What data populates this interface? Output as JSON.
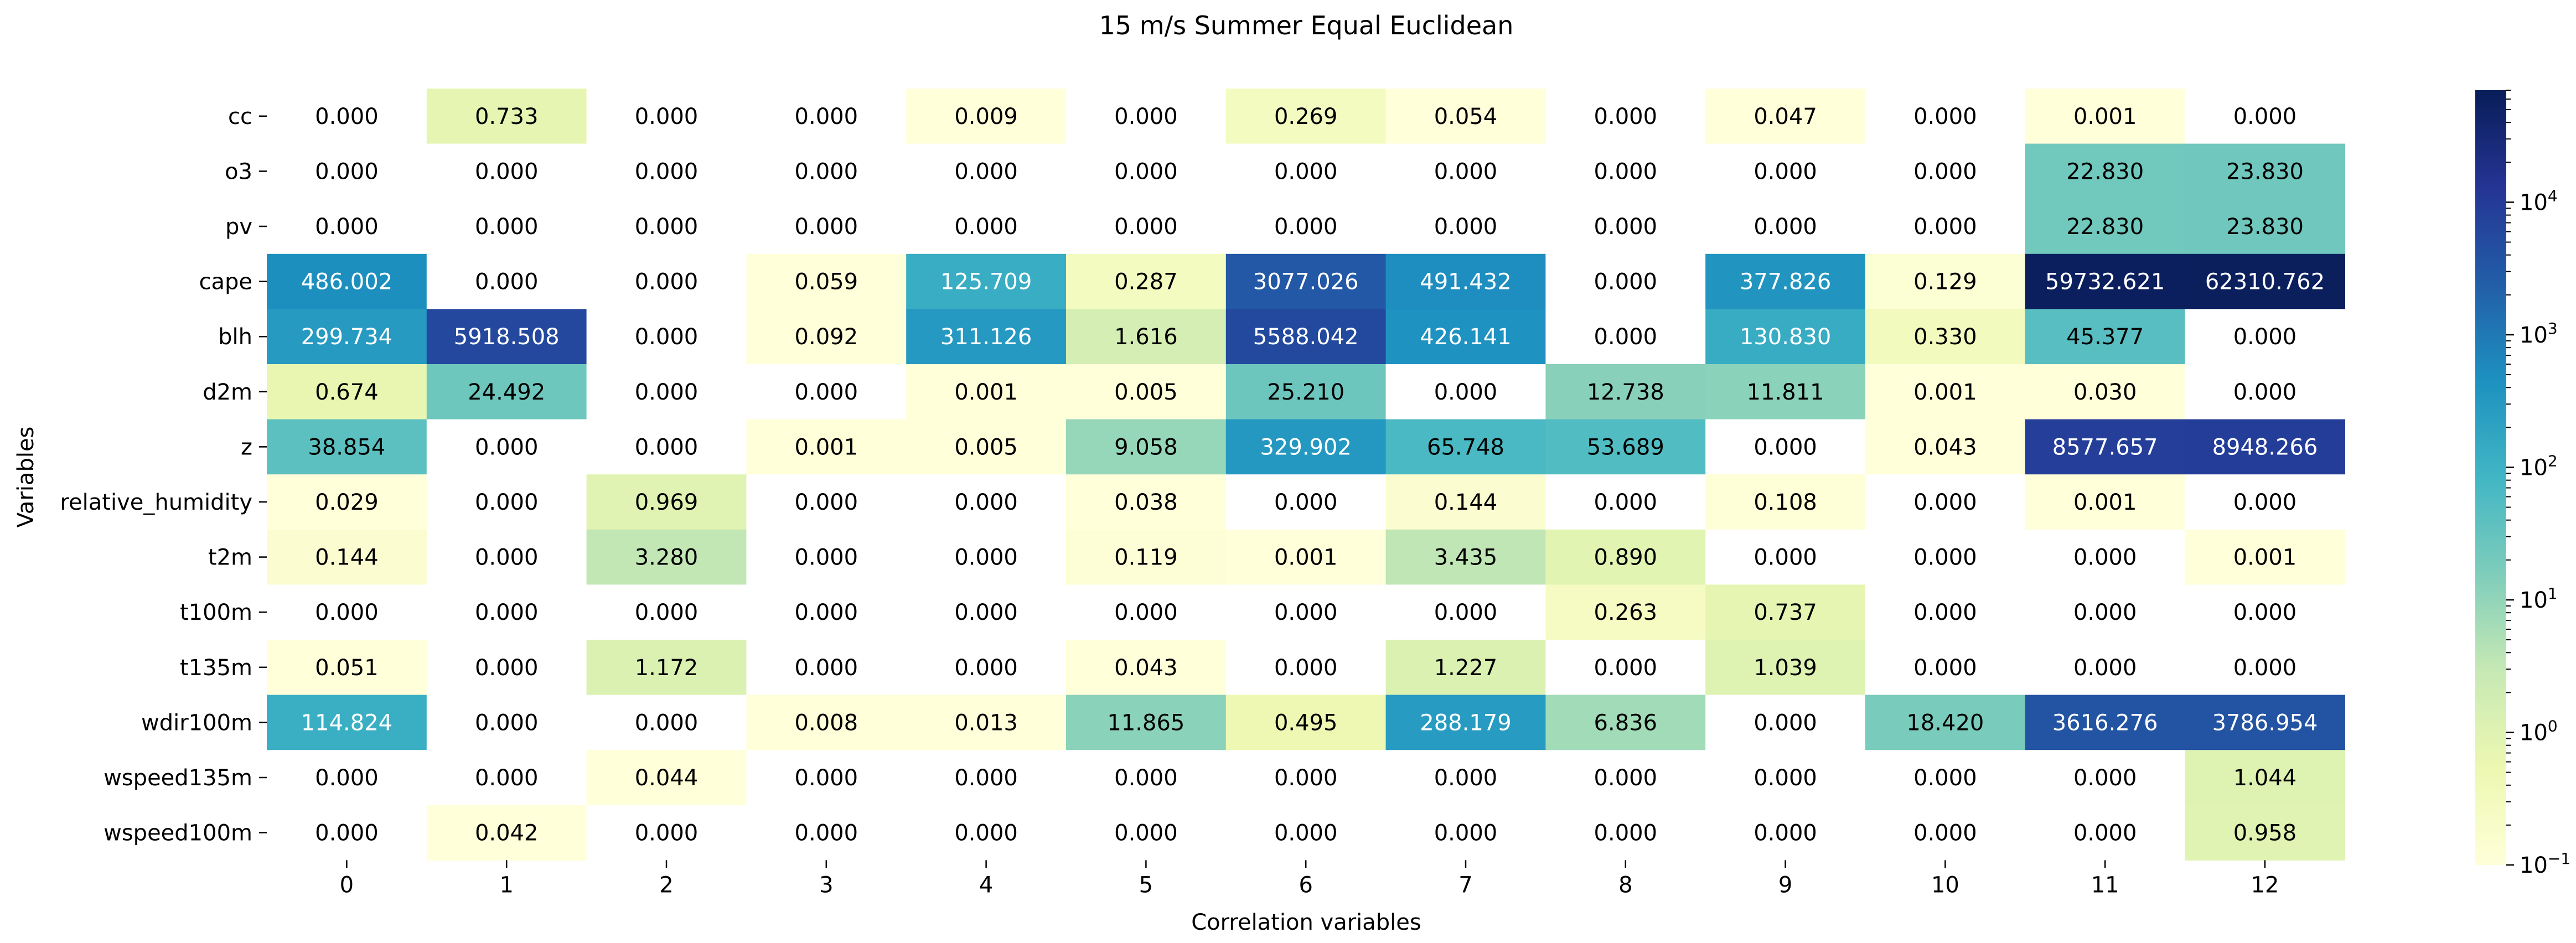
{
  "chart_data": {
    "type": "heatmap",
    "title": "15 m/s Summer Equal Euclidean",
    "xlabel": "Correlation variables",
    "ylabel": "Variables",
    "x_categories": [
      "0",
      "1",
      "2",
      "3",
      "4",
      "5",
      "6",
      "7",
      "8",
      "9",
      "10",
      "11",
      "12"
    ],
    "y_categories": [
      "cc",
      "o3",
      "pv",
      "cape",
      "blh",
      "d2m",
      "z",
      "relative_humidity",
      "t2m",
      "t100m",
      "t135m",
      "wdir100m",
      "wspeed135m",
      "wspeed100m"
    ],
    "values": [
      [
        0.0,
        0.733,
        0.0,
        0.0,
        0.009,
        0.0,
        0.269,
        0.054,
        0.0,
        0.047,
        0.0,
        0.001,
        0.0
      ],
      [
        0.0,
        0.0,
        0.0,
        0.0,
        0.0,
        0.0,
        0.0,
        0.0,
        0.0,
        0.0,
        0.0,
        22.83,
        23.83
      ],
      [
        0.0,
        0.0,
        0.0,
        0.0,
        0.0,
        0.0,
        0.0,
        0.0,
        0.0,
        0.0,
        0.0,
        22.83,
        23.83
      ],
      [
        486.002,
        0.0,
        0.0,
        0.059,
        125.709,
        0.287,
        3077.026,
        491.432,
        0.0,
        377.826,
        0.129,
        59732.621,
        62310.762
      ],
      [
        299.734,
        5918.508,
        0.0,
        0.092,
        311.126,
        1.616,
        5588.042,
        426.141,
        0.0,
        130.83,
        0.33,
        45.377,
        0.0
      ],
      [
        0.674,
        24.492,
        0.0,
        0.0,
        0.001,
        0.005,
        25.21,
        0.0,
        12.738,
        11.811,
        0.001,
        0.03,
        0.0
      ],
      [
        38.854,
        0.0,
        0.0,
        0.001,
        0.005,
        9.058,
        329.902,
        65.748,
        53.689,
        0.0,
        0.043,
        8577.657,
        8948.266
      ],
      [
        0.029,
        0.0,
        0.969,
        0.0,
        0.0,
        0.038,
        0.0,
        0.144,
        0.0,
        0.108,
        0.0,
        0.001,
        0.0
      ],
      [
        0.144,
        0.0,
        3.28,
        0.0,
        0.0,
        0.119,
        0.001,
        3.435,
        0.89,
        0.0,
        0.0,
        0.0,
        0.001
      ],
      [
        0.0,
        0.0,
        0.0,
        0.0,
        0.0,
        0.0,
        0.0,
        0.0,
        0.263,
        0.737,
        0.0,
        0.0,
        0.0
      ],
      [
        0.051,
        0.0,
        1.172,
        0.0,
        0.0,
        0.043,
        0.0,
        1.227,
        0.0,
        1.039,
        0.0,
        0.0,
        0.0
      ],
      [
        114.824,
        0.0,
        0.0,
        0.008,
        0.013,
        11.865,
        0.495,
        288.179,
        6.836,
        0.0,
        18.42,
        3616.276,
        3786.954
      ],
      [
        0.0,
        0.0,
        0.044,
        0.0,
        0.0,
        0.0,
        0.0,
        0.0,
        0.0,
        0.0,
        0.0,
        0.0,
        1.044
      ],
      [
        0.0,
        0.042,
        0.0,
        0.0,
        0.0,
        0.0,
        0.0,
        0.0,
        0.0,
        0.0,
        0.0,
        0.0,
        0.958
      ]
    ],
    "value_format": "0.000",
    "colormap": "YlGnBu",
    "color_scale": "log",
    "colorbar_range": [
      0.1,
      70000
    ],
    "colorbar_ticks": [
      {
        "base": "10",
        "exp": "−1",
        "value": 0.1
      },
      {
        "base": "10",
        "exp": "0",
        "value": 1
      },
      {
        "base": "10",
        "exp": "1",
        "value": 10
      },
      {
        "base": "10",
        "exp": "2",
        "value": 100
      },
      {
        "base": "10",
        "exp": "3",
        "value": 1000
      },
      {
        "base": "10",
        "exp": "4",
        "value": 10000
      }
    ],
    "grid": false,
    "colors": {
      "text_light": "#ffffff",
      "text_dark": "#000000",
      "zero_cell": "#ffffff"
    }
  }
}
